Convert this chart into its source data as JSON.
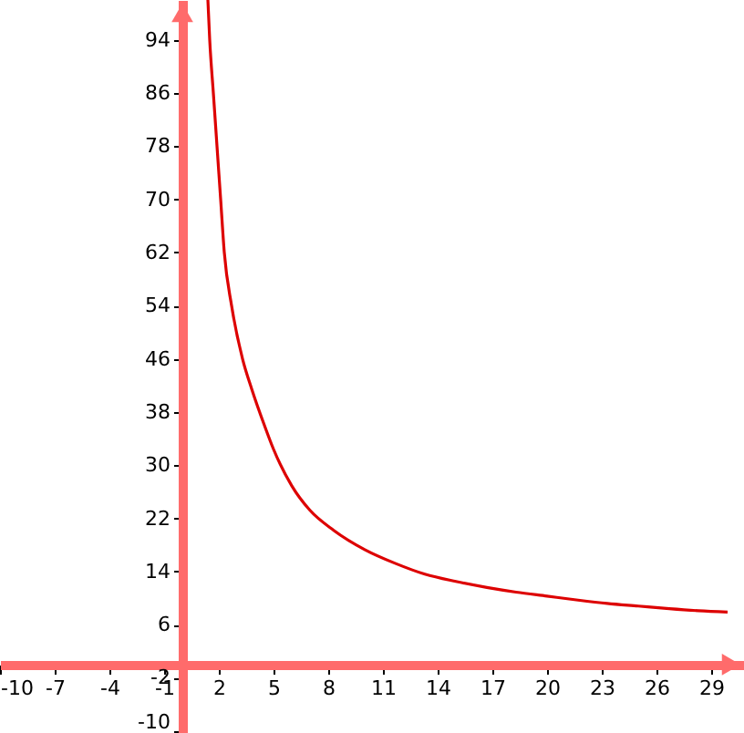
{
  "chart_data": {
    "type": "line",
    "x": [
      1.4,
      1.5,
      1.7,
      1.9,
      2.1,
      2.3,
      2.7,
      3.3,
      3.8,
      4.5,
      5,
      6,
      7,
      8.3,
      10,
      11.7,
      13.3,
      15,
      16.7,
      18.3,
      20,
      21.7,
      23.3,
      25,
      26.7,
      28.3,
      29.9
    ],
    "series": [
      {
        "color": "#dd0000",
        "values": [
          100,
          94,
          86,
          78,
          70,
          62,
          54,
          46,
          41.5,
          36,
          32.4,
          26.9,
          23.2,
          20.2,
          17.3,
          15.2,
          13.6,
          12.5,
          11.6,
          10.9,
          10.3,
          9.7,
          9.2,
          8.8,
          8.4,
          8.1,
          7.9
        ]
      }
    ],
    "xlim": [
      -10,
      30.8
    ],
    "ylim": [
      -10.3,
      100
    ],
    "xticks": [
      -10,
      -7,
      -4,
      -1,
      2,
      5,
      8,
      11,
      14,
      17,
      20,
      23,
      26,
      29
    ],
    "yticks": [
      -10,
      -2,
      6,
      14,
      22,
      30,
      38,
      46,
      54,
      62,
      70,
      78,
      86,
      94
    ],
    "grid": false,
    "marker": "none",
    "line_style": "solid"
  }
}
